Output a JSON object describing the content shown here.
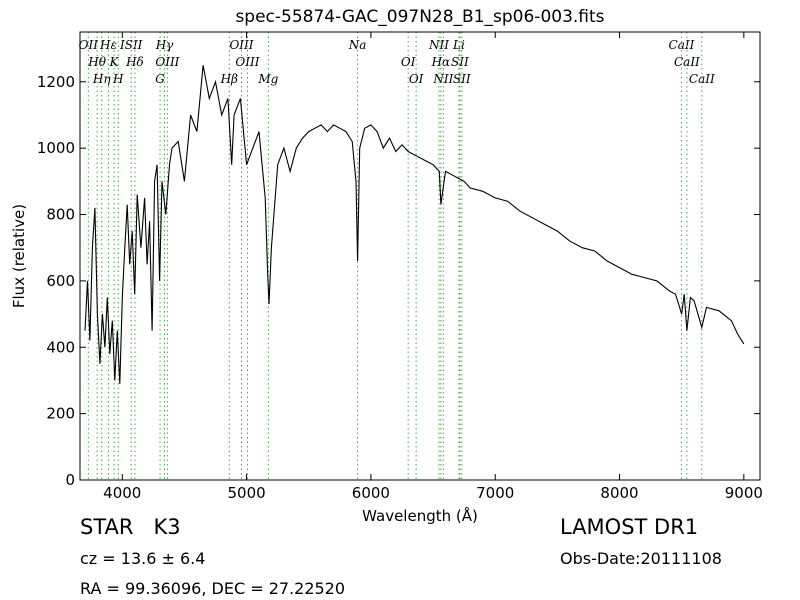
{
  "chart_data": {
    "type": "line",
    "title": "spec-55874-GAC_097N28_B1_sp06-003.fits",
    "x_label": "Wavelength (Å)",
    "y_label": "Flux (relative)",
    "xlim": [
      3660,
      9130
    ],
    "ylim": [
      0,
      1350
    ],
    "xticks": [
      4000,
      5000,
      6000,
      7000,
      8000,
      9000
    ],
    "yticks": [
      0,
      200,
      400,
      600,
      800,
      1000,
      1200
    ],
    "x": [
      3700,
      3720,
      3740,
      3760,
      3780,
      3800,
      3820,
      3840,
      3860,
      3880,
      3900,
      3920,
      3940,
      3960,
      3980,
      4000,
      4020,
      4040,
      4060,
      4080,
      4100,
      4120,
      4150,
      4180,
      4200,
      4220,
      4240,
      4260,
      4280,
      4300,
      4320,
      4350,
      4380,
      4400,
      4450,
      4500,
      4550,
      4600,
      4650,
      4700,
      4750,
      4800,
      4850,
      4880,
      4900,
      4950,
      5000,
      5050,
      5100,
      5150,
      5170,
      5180,
      5200,
      5250,
      5300,
      5350,
      5400,
      5450,
      5500,
      5550,
      5600,
      5650,
      5700,
      5750,
      5800,
      5850,
      5880,
      5893,
      5910,
      5950,
      6000,
      6050,
      6100,
      6150,
      6200,
      6250,
      6300,
      6350,
      6400,
      6450,
      6500,
      6550,
      6563,
      6600,
      6650,
      6700,
      6750,
      6800,
      6900,
      7000,
      7100,
      7200,
      7300,
      7400,
      7500,
      7600,
      7700,
      7800,
      7900,
      8000,
      8100,
      8200,
      8300,
      8400,
      8450,
      8500,
      8520,
      8542,
      8570,
      8600,
      8662,
      8700,
      8800,
      8900,
      8950,
      9000
    ],
    "series": [
      {
        "name": "flux",
        "color": "#000000",
        "values": [
          450,
          600,
          420,
          700,
          820,
          500,
          350,
          500,
          400,
          550,
          380,
          480,
          300,
          450,
          290,
          550,
          700,
          830,
          650,
          750,
          560,
          860,
          700,
          850,
          650,
          780,
          450,
          900,
          950,
          600,
          900,
          800,
          950,
          1000,
          1020,
          900,
          1100,
          1050,
          1250,
          1150,
          1200,
          1100,
          1150,
          950,
          1100,
          1150,
          950,
          1000,
          1050,
          850,
          620,
          530,
          700,
          950,
          1000,
          930,
          1000,
          1030,
          1050,
          1060,
          1070,
          1050,
          1070,
          1060,
          1050,
          1020,
          900,
          660,
          1000,
          1060,
          1070,
          1050,
          1000,
          1030,
          990,
          1010,
          990,
          980,
          970,
          960,
          950,
          930,
          830,
          930,
          920,
          910,
          900,
          880,
          870,
          850,
          840,
          810,
          790,
          770,
          750,
          720,
          700,
          690,
          660,
          640,
          620,
          610,
          600,
          570,
          560,
          500,
          560,
          450,
          550,
          540,
          460,
          520,
          510,
          480,
          440,
          410
        ]
      }
    ],
    "line_color": "#44aa44",
    "lines": [
      {
        "x": 3727,
        "label": "OII"
      },
      {
        "x": 3798,
        "label": "Hθ"
      },
      {
        "x": 3835,
        "label": "Hη"
      },
      {
        "x": 3889,
        "label": "Hε"
      },
      {
        "x": 3934,
        "label": "K"
      },
      {
        "x": 3968,
        "label": "H"
      },
      {
        "x": 4072,
        "label": "ISII"
      },
      {
        "x": 4102,
        "label": "Hδ"
      },
      {
        "x": 4304,
        "label": "G"
      },
      {
        "x": 4340,
        "label": "Hγ"
      },
      {
        "x": 4363,
        "label": "OIII"
      },
      {
        "x": 4861,
        "label": "Hβ"
      },
      {
        "x": 4959,
        "label": "OIII"
      },
      {
        "x": 5007,
        "label": "OIII"
      },
      {
        "x": 5175,
        "label": "Mg"
      },
      {
        "x": 5893,
        "label": "Na"
      },
      {
        "x": 6300,
        "label": "OI"
      },
      {
        "x": 6364,
        "label": "OI"
      },
      {
        "x": 6548,
        "label": "NII"
      },
      {
        "x": 6563,
        "label": "Hα"
      },
      {
        "x": 6583,
        "label": "NII"
      },
      {
        "x": 6708,
        "label": "Li"
      },
      {
        "x": 6716,
        "label": "SII"
      },
      {
        "x": 6731,
        "label": "SII"
      },
      {
        "x": 8498,
        "label": "CaII"
      },
      {
        "x": 8542,
        "label": "CaII"
      },
      {
        "x": 8662,
        "label": "CaII"
      }
    ]
  },
  "footer": {
    "class": "STAR   K3",
    "redshift": "cz = 13.6  ± 6.4",
    "coords": "RA = 99.36096, DEC = 27.22520",
    "survey": "LAMOST DR1",
    "date": "Obs-Date:20111108"
  }
}
